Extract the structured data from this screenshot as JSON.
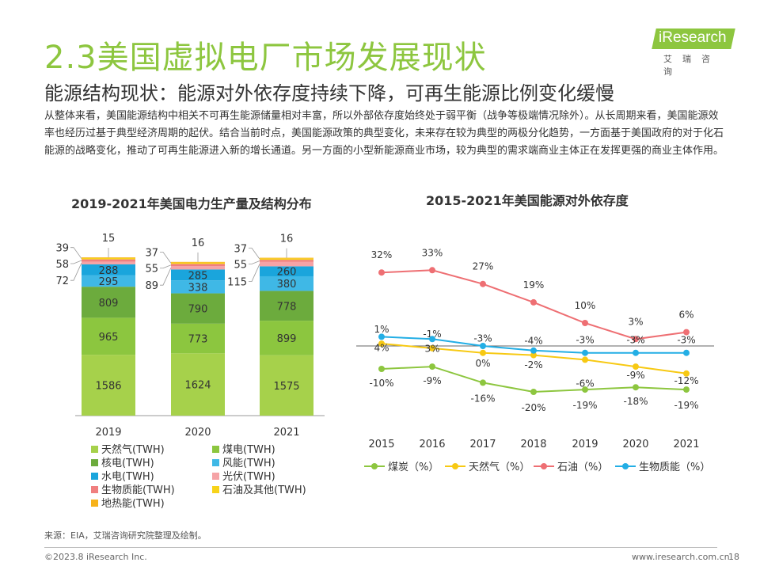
{
  "title": "2.3美国虚拟电厂市场发展现状",
  "logo": {
    "brand": "iResearch",
    "sub": "艾瑞咨询"
  },
  "subtitle": "能源结构现状：能源对外依存度持续下降，可再生能源比例变化缓慢",
  "intro": "从整体来看，美国能源结构中相关不可再生能源储量相对丰富，所以外部依存度始终处于弱平衡（战争等极端情况除外）。从长周期来看，美国能源效率也经历过基于典型经济周期的起伏。结合当前时点，美国能源政策的典型变化，未来存在较为典型的两极分化趋势，一方面基于美国政府的对于化石能源的战略变化，推动了可再生能源进入新的增长通道。另一方面的小型新能源商业市场，较为典型的需求端商业主体正在发挥更强的商业主体作用。",
  "colors": {
    "accent": "#8dc63f"
  },
  "chart_data": [
    {
      "type": "bar",
      "stacked": true,
      "title": "2019-2021年美国电力生产量及结构分布",
      "categories": [
        "2019",
        "2020",
        "2021"
      ],
      "series": [
        {
          "name": "天然气(TWH)",
          "color": "#a6d14b",
          "values": [
            1586,
            1624,
            1575
          ]
        },
        {
          "name": "煤电(TWH)",
          "color": "#8cc63f",
          "values": [
            965,
            773,
            899
          ]
        },
        {
          "name": "核电(TWH)",
          "color": "#6cab3d",
          "values": [
            809,
            790,
            778
          ]
        },
        {
          "name": "风能(TWH)",
          "color": "#3fb8e6",
          "values": [
            295,
            338,
            380
          ]
        },
        {
          "name": "水电(TWH)",
          "color": "#1aa5dc",
          "values": [
            288,
            285,
            260
          ]
        },
        {
          "name": "光伏(TWH)",
          "color": "#f5a3a6",
          "values": [
            72,
            89,
            115
          ]
        },
        {
          "name": "生物质能(TWH)",
          "color": "#f07f7f",
          "values": [
            58,
            55,
            55
          ]
        },
        {
          "name": "石油及其他(TWH)",
          "color": "#f7d31a",
          "values": [
            39,
            37,
            37
          ]
        },
        {
          "name": "地热能(TWH)",
          "color": "#f7b21a",
          "values": [
            15,
            16,
            16
          ]
        }
      ]
    },
    {
      "type": "line",
      "title": "2015-2021年美国能源对外依存度",
      "categories": [
        "2015",
        "2016",
        "2017",
        "2018",
        "2019",
        "2020",
        "2021"
      ],
      "series": [
        {
          "name": "煤炭（%）",
          "color": "#8dc63f",
          "values": [
            -10,
            -9,
            -16,
            -20,
            -19,
            -18,
            -19
          ],
          "labels": [
            "-10%",
            "-9%",
            "-16%",
            "-20%",
            "-19%",
            "-18%",
            "-19%"
          ]
        },
        {
          "name": "天然气（%）",
          "color": "#f7c913",
          "values": [
            1,
            -1,
            -3,
            -4,
            -6,
            -9,
            -12
          ],
          "labels": [
            "1%",
            "-1%",
            "-3%",
            "-4%",
            "-6%",
            "-9%",
            "-12%"
          ]
        },
        {
          "name": "石油（%）",
          "color": "#ee6f73",
          "values": [
            32,
            33,
            27,
            19,
            10,
            3,
            6
          ],
          "labels": [
            "32%",
            "33%",
            "27%",
            "19%",
            "10%",
            "3%",
            "6%"
          ]
        },
        {
          "name": "生物质能（%）",
          "color": "#23aee5",
          "values": [
            4,
            3,
            0,
            -2,
            -3,
            -3,
            -3
          ],
          "labels": [
            "4%",
            "3%",
            "0%",
            "-2%",
            "-3%",
            "-3%",
            "-3%"
          ]
        }
      ]
    }
  ],
  "footer": {
    "source": "来源：EIA，艾瑞咨询研究院整理及绘制。",
    "copyright": "©2023.8 iResearch Inc.",
    "url": "www.iresearch.com.cn",
    "page": "18"
  }
}
